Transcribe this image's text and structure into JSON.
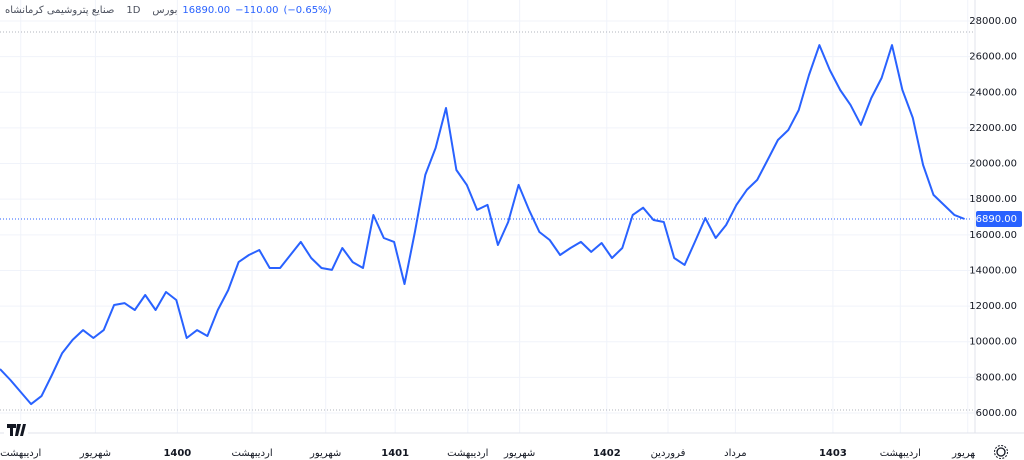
{
  "header": {
    "symbol": "صنایع پتروشیمی کرمانشاه",
    "interval": "1D",
    "exchange": "بورس",
    "price": "16890.00",
    "change": "−110.00",
    "change_pct": "(−0.65%)"
  },
  "chart_data": {
    "type": "line",
    "series": [
      {
        "color": "#2962ff",
        "values": [
          8470,
          7850,
          7180,
          6500,
          6950,
          8130,
          9360,
          10100,
          10650,
          10210,
          10650,
          12060,
          12170,
          11780,
          12620,
          11780,
          12790,
          12340,
          10210,
          10650,
          10320,
          11780,
          12900,
          14470,
          14870,
          15150,
          14140,
          14140,
          14870,
          15600,
          14700,
          14140,
          14030,
          15260,
          14470,
          14140,
          17110,
          15820,
          15600,
          13240,
          16160,
          19360,
          20870,
          23120,
          19640,
          18800,
          17400,
          17680,
          15430,
          16720,
          18800,
          17400,
          16160,
          15710,
          14870,
          15260,
          15600,
          15040,
          15540,
          14700,
          15260,
          17110,
          17520,
          16830,
          16720,
          14700,
          14310,
          15600,
          16940,
          15820,
          16550,
          17680,
          18520,
          19080,
          20200,
          21320,
          21880,
          23000,
          24970,
          26650,
          25250,
          24130,
          23290,
          22170,
          23680,
          24800,
          26650,
          24130,
          22560,
          19920,
          18240,
          17680,
          17120,
          16890
        ]
      }
    ],
    "xlim": [
      0,
      94
    ],
    "xticks": [
      {
        "value": 2,
        "label": "اردیبهشت"
      },
      {
        "value": 9.2,
        "label": "شهریور"
      },
      {
        "value": 17.1,
        "label": "1400"
      },
      {
        "value": 24.3,
        "label": "اردیبهشت"
      },
      {
        "value": 31.4,
        "label": "شهریور"
      },
      {
        "value": 38.1,
        "label": "1401"
      },
      {
        "value": 45.1,
        "label": "اردیبهشت"
      },
      {
        "value": 50.1,
        "label": "شهریور"
      },
      {
        "value": 58.5,
        "label": "1402"
      },
      {
        "value": 64.4,
        "label": "فروردین"
      },
      {
        "value": 70.9,
        "label": "مرداد"
      },
      {
        "value": 80.3,
        "label": "1403"
      },
      {
        "value": 86.8,
        "label": "اردیبهشت"
      },
      {
        "value": 93.3,
        "label": "شهریور"
      }
    ],
    "ylim": [
      6000,
      28000
    ],
    "yticks": [
      {
        "value": 6000,
        "label": "6000.00"
      },
      {
        "value": 8000,
        "label": "8000.00"
      },
      {
        "value": 10000,
        "label": "10000.00"
      },
      {
        "value": 12000,
        "label": "12000.00"
      },
      {
        "value": 14000,
        "label": "14000.00"
      },
      {
        "value": 16000,
        "label": "16000.00"
      },
      {
        "value": 18000,
        "label": "18000.00"
      },
      {
        "value": 20000,
        "label": "20000.00"
      },
      {
        "value": 22000,
        "label": "22000.00"
      },
      {
        "value": 24000,
        "label": "24000.00"
      },
      {
        "value": 26000,
        "label": "26000.00"
      },
      {
        "value": 28000,
        "label": "28000.00"
      }
    ],
    "last": {
      "value": 16890,
      "label": "16890.00"
    }
  }
}
